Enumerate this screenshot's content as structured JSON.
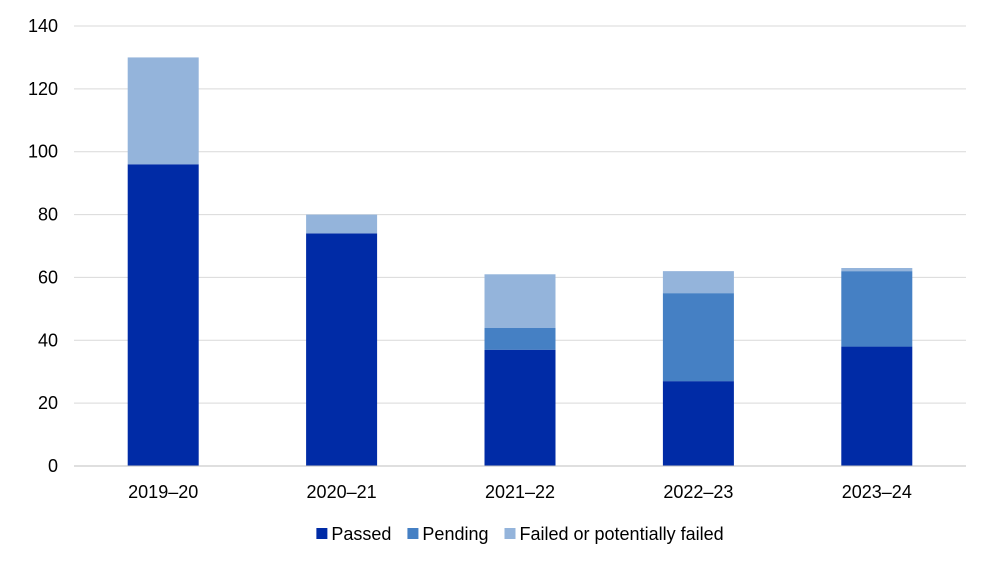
{
  "chart_data": {
    "type": "bar",
    "stacked": true,
    "categories": [
      "2019–20",
      "2020–21",
      "2021–22",
      "2022–23",
      "2023–24"
    ],
    "series": [
      {
        "name": "Passed",
        "color": "#002BA6",
        "values": [
          96,
          74,
          37,
          27,
          38
        ]
      },
      {
        "name": "Pending",
        "color": "#4580C4",
        "values": [
          0,
          0,
          7,
          28,
          24
        ]
      },
      {
        "name": "Failed or potentially failed",
        "color": "#94B4DB",
        "values": [
          34,
          6,
          17,
          7,
          1
        ]
      }
    ],
    "ylim": [
      0,
      140
    ],
    "yticks": [
      0,
      20,
      40,
      60,
      80,
      100,
      120,
      140
    ],
    "grid": true,
    "legend_position": "bottom"
  }
}
